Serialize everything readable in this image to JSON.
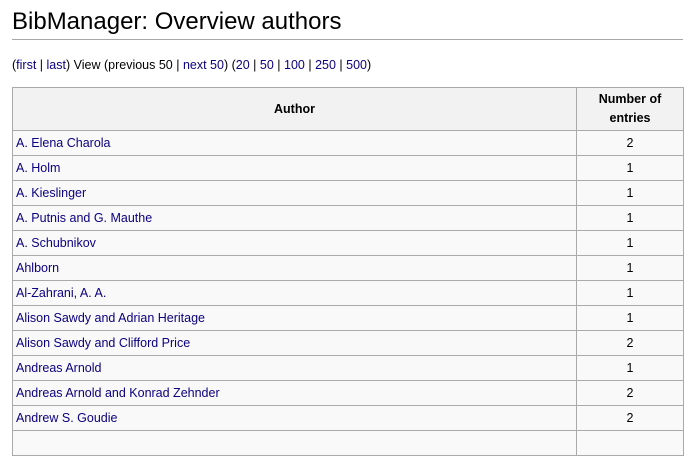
{
  "title": "BibManager: Overview authors",
  "nav": {
    "first": "first",
    "last": "last",
    "view": "View",
    "previous": "previous 50",
    "next": "next 50",
    "limits": [
      "20",
      "50",
      "100",
      "250",
      "500"
    ]
  },
  "table": {
    "headers": [
      "Author",
      "Number of entries"
    ],
    "rows": [
      {
        "author": "A. Elena Charola",
        "count": "2"
      },
      {
        "author": "A. Holm",
        "count": "1"
      },
      {
        "author": "A. Kieslinger",
        "count": "1"
      },
      {
        "author": "A. Putnis and G. Mauthe",
        "count": "1"
      },
      {
        "author": "A. Schubnikov",
        "count": "1"
      },
      {
        "author": "Ahlborn",
        "count": "1"
      },
      {
        "author": "Al-Zahrani, A. A.",
        "count": "1"
      },
      {
        "author": "Alison Sawdy and Adrian Heritage",
        "count": "1"
      },
      {
        "author": "Alison Sawdy and Clifford Price",
        "count": "2"
      },
      {
        "author": "Andreas Arnold",
        "count": "1"
      },
      {
        "author": "Andreas Arnold and Konrad Zehnder",
        "count": "2"
      },
      {
        "author": "Andrew S. Goudie",
        "count": "2"
      },
      {
        "author": "",
        "count": ""
      }
    ]
  }
}
